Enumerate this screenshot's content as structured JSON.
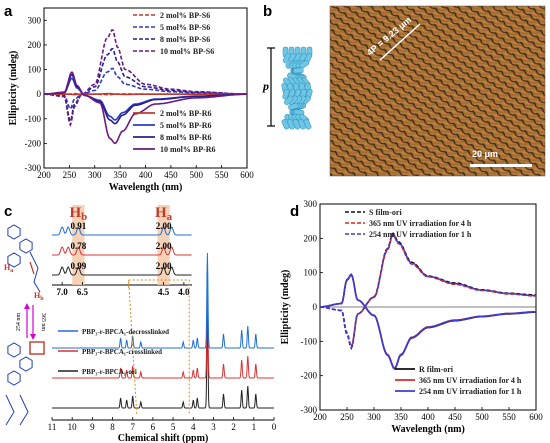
{
  "panel_a": {
    "letter": "a",
    "legend_s6": [
      "2 mol% BP-S6",
      "5 mol% BP-S6",
      "8 mol% BP-S6",
      "10 mol% BP-S6"
    ],
    "legend_r6": [
      "2 mol% BP-R6",
      "5 mol% BP-R6",
      "8 mol% BP-R6",
      "10 mol% BP-R6"
    ],
    "colors": [
      "#c0392b",
      "#2b3cc4",
      "#2a1f8f",
      "#6a1a80"
    ]
  },
  "panel_b": {
    "letter": "b",
    "pitch_symbol": "p",
    "annotation": "4P = 9.23 μm",
    "scalebar": "20 μm"
  },
  "panel_c": {
    "letter": "c",
    "hb": "H",
    "hb_sub": "b",
    "ha": "H",
    "ha_sub": "a",
    "rows": [
      {
        "left": "0.91",
        "right": "2.00",
        "color": "#1f6fd6"
      },
      {
        "left": "0.78",
        "right": "2.00",
        "color": "#d93434"
      },
      {
        "left": "0.99",
        "right": "2.00",
        "color": "#222222"
      }
    ],
    "legend": [
      "PBP₃-r-BPCA₁-decrosslinked",
      "PBP₃-r-BPCA₁-crosslinked",
      "PBP₃-r-BPCA₁-ori"
    ],
    "mol_labels": {
      "ha": "H",
      "ha_sub": "a",
      "hb": "H",
      "hb_sub": "b",
      "up": "254 nm",
      "down": "365 nm"
    }
  },
  "panel_d": {
    "letter": "d",
    "legend_top": [
      "S film-ori",
      "365 nm UV irradiation for 4 h",
      "254 nm UV irradiation for 1 h"
    ],
    "legend_bottom": [
      "R film-ori",
      "365 nm UV irradiation for 4 h",
      "254 nm UV irradiation for 1 h"
    ]
  },
  "chart_data": [
    {
      "type": "line",
      "title": "",
      "xlabel": "Wavelength (nm)",
      "ylabel": "Ellipticity (mdeg)",
      "xlim": [
        200,
        600
      ],
      "ylim": [
        -300,
        350
      ],
      "xticks": [
        200,
        250,
        300,
        350,
        400,
        450,
        500,
        550,
        600
      ],
      "yticks": [
        -300,
        -200,
        -100,
        0,
        100,
        200,
        300
      ],
      "series": [
        {
          "name": "2 mol% BP-S6",
          "style": "dashed",
          "x": [
            200,
            250,
            260,
            270,
            300,
            330,
            340,
            360,
            400,
            450,
            600
          ],
          "y": [
            0,
            0,
            2,
            0,
            0,
            -2,
            0,
            1,
            0,
            0,
            0
          ]
        },
        {
          "name": "5 mol% BP-S6",
          "style": "dashed",
          "x": [
            200,
            240,
            252,
            260,
            275,
            300,
            325,
            335,
            345,
            360,
            400,
            450,
            500,
            600
          ],
          "y": [
            0,
            -5,
            -60,
            -20,
            0,
            15,
            90,
            105,
            70,
            40,
            20,
            10,
            5,
            0
          ]
        },
        {
          "name": "8 mol% BP-S6",
          "style": "dashed",
          "x": [
            200,
            240,
            252,
            260,
            275,
            300,
            325,
            335,
            345,
            360,
            400,
            450,
            500,
            600
          ],
          "y": [
            0,
            -8,
            -110,
            -40,
            0,
            30,
            160,
            185,
            130,
            70,
            30,
            15,
            8,
            0
          ]
        },
        {
          "name": "10 mol% BP-S6",
          "style": "dashed",
          "x": [
            200,
            240,
            252,
            260,
            275,
            300,
            325,
            335,
            345,
            360,
            400,
            450,
            500,
            600
          ],
          "y": [
            0,
            -10,
            -125,
            -50,
            0,
            40,
            230,
            262,
            190,
            100,
            40,
            20,
            10,
            0
          ]
        },
        {
          "name": "2 mol% BP-R6",
          "style": "solid",
          "x": [
            200,
            250,
            260,
            270,
            300,
            330,
            340,
            360,
            400,
            600
          ],
          "y": [
            0,
            0,
            -2,
            0,
            0,
            2,
            0,
            -1,
            0,
            0
          ]
        },
        {
          "name": "5 mol% BP-R6",
          "style": "solid",
          "x": [
            200,
            240,
            255,
            265,
            280,
            310,
            330,
            340,
            355,
            380,
            420,
            500,
            600
          ],
          "y": [
            0,
            5,
            65,
            25,
            -5,
            -25,
            -90,
            -105,
            -75,
            -40,
            -20,
            -8,
            0
          ]
        },
        {
          "name": "8 mol% BP-R6",
          "style": "solid",
          "x": [
            200,
            240,
            255,
            265,
            280,
            310,
            330,
            340,
            355,
            380,
            420,
            500,
            600
          ],
          "y": [
            0,
            6,
            80,
            30,
            -5,
            -30,
            -105,
            -120,
            -85,
            -45,
            -22,
            -9,
            0
          ]
        },
        {
          "name": "10 mol% BP-R6",
          "style": "solid",
          "x": [
            200,
            240,
            255,
            265,
            280,
            310,
            330,
            340,
            355,
            380,
            420,
            500,
            600
          ],
          "y": [
            0,
            8,
            90,
            35,
            -5,
            -35,
            -180,
            -200,
            -150,
            -80,
            -40,
            -15,
            0
          ]
        }
      ]
    },
    {
      "type": "line",
      "title": "",
      "xlabel": "Chemical shift (ppm)",
      "ylabel": "",
      "xlim": [
        11,
        0
      ],
      "xticks": [
        11,
        10,
        9,
        8,
        7,
        6,
        5,
        4,
        3,
        2,
        1,
        0
      ],
      "inset_xticks": [
        7.0,
        6.5,
        4.5,
        4.0
      ],
      "series": [
        {
          "name": "PBP₃-r-BPCA₁-ori",
          "peaks_ppm": [
            7.6,
            7.3,
            7.0,
            6.6,
            4.5,
            4.0,
            3.8,
            3.3,
            2.5,
            1.6,
            1.3,
            0.9
          ]
        },
        {
          "name": "PBP₃-r-BPCA₁-crosslinked",
          "peaks_ppm": [
            7.6,
            7.3,
            7.0,
            6.6,
            4.5,
            4.0,
            3.8,
            3.3,
            2.5,
            1.6,
            1.3,
            0.9
          ]
        },
        {
          "name": "PBP₃-r-BPCA₁-decrosslinked",
          "peaks_ppm": [
            7.6,
            7.3,
            7.0,
            6.6,
            4.5,
            4.0,
            3.8,
            3.3,
            2.5,
            1.6,
            1.3,
            0.9
          ]
        }
      ]
    },
    {
      "type": "line",
      "title": "",
      "xlabel": "Wavelength (nm)",
      "ylabel": "Ellipticity (mdeg)",
      "xlim": [
        200,
        600
      ],
      "ylim": [
        -300,
        300
      ],
      "xticks": [
        200,
        250,
        300,
        350,
        400,
        450,
        500,
        550,
        600
      ],
      "yticks": [
        -300,
        -200,
        -100,
        0,
        100,
        200,
        300
      ],
      "series": [
        {
          "name": "S film-ori",
          "style": "dashed",
          "x": [
            200,
            240,
            250,
            258,
            270,
            300,
            325,
            335,
            345,
            370,
            400,
            450,
            500,
            550,
            600
          ],
          "y": [
            0,
            -10,
            -80,
            -120,
            -20,
            30,
            170,
            215,
            190,
            130,
            90,
            70,
            50,
            40,
            35
          ]
        },
        {
          "name": "365 nm UV irradiation for 4 h",
          "style": "dashed",
          "x": [
            200,
            240,
            250,
            258,
            270,
            300,
            325,
            335,
            345,
            370,
            400,
            450,
            500,
            550,
            600
          ],
          "y": [
            0,
            -10,
            -75,
            -115,
            -20,
            28,
            165,
            210,
            185,
            125,
            88,
            66,
            48,
            38,
            32
          ]
        },
        {
          "name": "254 nm UV irradiation for 1 h",
          "style": "dashed",
          "x": [
            200,
            240,
            250,
            258,
            270,
            300,
            325,
            335,
            345,
            370,
            400,
            450,
            500,
            550,
            600
          ],
          "y": [
            0,
            -10,
            -78,
            -118,
            -20,
            29,
            168,
            212,
            188,
            128,
            89,
            68,
            49,
            39,
            33
          ]
        },
        {
          "name": "R film-ori",
          "style": "solid",
          "x": [
            200,
            240,
            250,
            258,
            270,
            300,
            325,
            338,
            350,
            370,
            400,
            450,
            500,
            550,
            600
          ],
          "y": [
            0,
            10,
            80,
            95,
            20,
            -25,
            -140,
            -180,
            -140,
            -90,
            -60,
            -40,
            -28,
            -20,
            -15
          ]
        },
        {
          "name": "365 nm UV irradiation for 4 h",
          "style": "solid",
          "x": [
            200,
            240,
            250,
            258,
            270,
            300,
            325,
            338,
            350,
            370,
            400,
            450,
            500,
            550,
            600
          ],
          "y": [
            0,
            10,
            78,
            93,
            20,
            -24,
            -138,
            -178,
            -138,
            -88,
            -58,
            -38,
            -27,
            -19,
            -14
          ]
        },
        {
          "name": "254 nm UV irradiation for 1 h",
          "style": "solid",
          "x": [
            200,
            240,
            250,
            258,
            270,
            300,
            325,
            338,
            350,
            370,
            400,
            450,
            500,
            550,
            600
          ],
          "y": [
            0,
            10,
            79,
            94,
            20,
            -24,
            -139,
            -179,
            -139,
            -89,
            -59,
            -39,
            -27,
            -19,
            -14
          ]
        }
      ]
    }
  ]
}
